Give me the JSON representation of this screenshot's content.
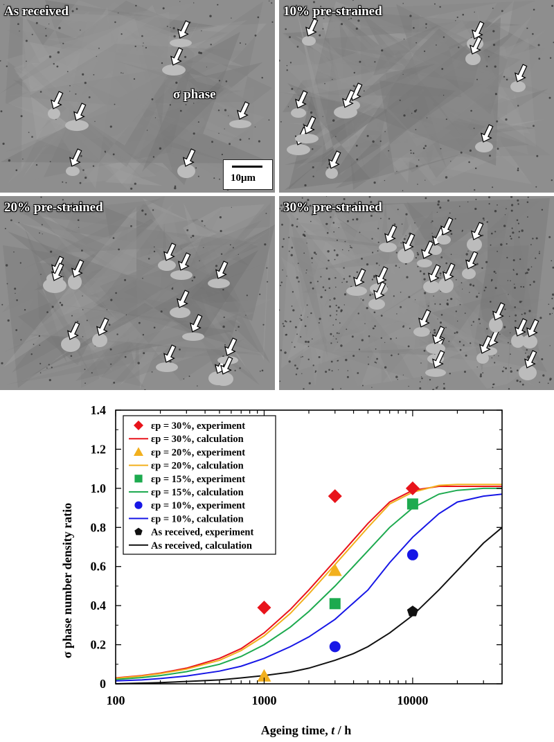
{
  "micrographs": {
    "panels": [
      {
        "label": "As received"
      },
      {
        "label": "10% pre-strained"
      },
      {
        "label": "20% pre-strained"
      },
      {
        "label": "30% pre-strained"
      }
    ],
    "phase_annotation": "σ phase",
    "scale_bar": "10μm",
    "colors": {
      "matrix": "#8e8e8e",
      "sigma_phase": "#bcbcbc",
      "arrow_fill": "#ffffff",
      "arrow_outline": "#000000"
    }
  },
  "chart_data": {
    "type": "scatter",
    "xlabel_main": "Ageing time, ",
    "xlabel_italic": "t",
    "xlabel_unit": " / h",
    "ylabel": "σ phase number density ratio",
    "xscale": "log",
    "xlim": [
      100,
      40000
    ],
    "ylim": [
      0,
      1.4
    ],
    "xticks": [
      100,
      1000,
      10000
    ],
    "xtick_labels": [
      "100",
      "1000",
      "10000"
    ],
    "yticks": [
      0,
      0.2,
      0.4,
      0.6,
      0.8,
      1.0,
      1.2,
      1.4
    ],
    "ytick_labels": [
      "0",
      "0.2",
      "0.4",
      "0.6",
      "0.8",
      "1.0",
      "1.2",
      "1.4"
    ],
    "legend_position": "top-left",
    "series": [
      {
        "name": "εp = 30%, experiment",
        "kind": "points",
        "marker": "diamond",
        "color": "#e8141b",
        "points": [
          [
            1000,
            0.39
          ],
          [
            3000,
            0.96
          ],
          [
            10000,
            1.0
          ]
        ]
      },
      {
        "name": "εp = 30%, calculation",
        "kind": "curve",
        "color": "#e8141b",
        "points": [
          [
            100,
            0.03
          ],
          [
            150,
            0.042
          ],
          [
            200,
            0.055
          ],
          [
            300,
            0.08
          ],
          [
            500,
            0.13
          ],
          [
            700,
            0.18
          ],
          [
            1000,
            0.26
          ],
          [
            1500,
            0.38
          ],
          [
            2000,
            0.48
          ],
          [
            3000,
            0.63
          ],
          [
            5000,
            0.82
          ],
          [
            7000,
            0.93
          ],
          [
            10000,
            0.99
          ],
          [
            15000,
            1.01
          ],
          [
            20000,
            1.01
          ],
          [
            30000,
            1.01
          ],
          [
            40000,
            1.01
          ]
        ]
      },
      {
        "name": "εp = 20%, experiment",
        "kind": "points",
        "marker": "triangle",
        "color": "#f2b01e",
        "points": [
          [
            1000,
            0.04
          ],
          [
            3000,
            0.58
          ]
        ]
      },
      {
        "name": "εp = 20%, calculation",
        "kind": "curve",
        "color": "#f2b01e",
        "points": [
          [
            100,
            0.028
          ],
          [
            150,
            0.04
          ],
          [
            200,
            0.052
          ],
          [
            300,
            0.075
          ],
          [
            500,
            0.12
          ],
          [
            700,
            0.17
          ],
          [
            1000,
            0.245
          ],
          [
            1500,
            0.36
          ],
          [
            2000,
            0.46
          ],
          [
            3000,
            0.61
          ],
          [
            5000,
            0.8
          ],
          [
            7000,
            0.92
          ],
          [
            10000,
            0.98
          ],
          [
            15000,
            1.015
          ],
          [
            20000,
            1.02
          ],
          [
            30000,
            1.02
          ],
          [
            40000,
            1.02
          ]
        ]
      },
      {
        "name": "εp = 15%, experiment",
        "kind": "points",
        "marker": "square",
        "color": "#1daa4f",
        "points": [
          [
            3000,
            0.41
          ],
          [
            10000,
            0.92
          ]
        ]
      },
      {
        "name": "εp = 15%, calculation",
        "kind": "curve",
        "color": "#1daa4f",
        "points": [
          [
            100,
            0.022
          ],
          [
            150,
            0.032
          ],
          [
            200,
            0.042
          ],
          [
            300,
            0.062
          ],
          [
            500,
            0.1
          ],
          [
            700,
            0.14
          ],
          [
            1000,
            0.2
          ],
          [
            1500,
            0.29
          ],
          [
            2000,
            0.37
          ],
          [
            3000,
            0.5
          ],
          [
            5000,
            0.68
          ],
          [
            7000,
            0.8
          ],
          [
            10000,
            0.9
          ],
          [
            15000,
            0.97
          ],
          [
            20000,
            0.99
          ],
          [
            30000,
            1.0
          ],
          [
            40000,
            1.0
          ]
        ]
      },
      {
        "name": "εp = 10%, experiment",
        "kind": "points",
        "marker": "circle",
        "color": "#1717e6",
        "points": [
          [
            3000,
            0.19
          ],
          [
            10000,
            0.66
          ]
        ]
      },
      {
        "name": "εp = 10%, calculation",
        "kind": "curve",
        "color": "#1717e6",
        "points": [
          [
            100,
            0.015
          ],
          [
            150,
            0.02
          ],
          [
            200,
            0.027
          ],
          [
            300,
            0.04
          ],
          [
            500,
            0.065
          ],
          [
            700,
            0.09
          ],
          [
            1000,
            0.13
          ],
          [
            1500,
            0.19
          ],
          [
            2000,
            0.24
          ],
          [
            3000,
            0.33
          ],
          [
            5000,
            0.48
          ],
          [
            7000,
            0.62
          ],
          [
            10000,
            0.75
          ],
          [
            15000,
            0.87
          ],
          [
            20000,
            0.93
          ],
          [
            30000,
            0.96
          ],
          [
            40000,
            0.97
          ]
        ]
      },
      {
        "name": "As received, experiment",
        "kind": "points",
        "marker": "pentagon",
        "color": "#111111",
        "points": [
          [
            10000,
            0.37
          ]
        ]
      },
      {
        "name": "As received, calculation",
        "kind": "curve",
        "color": "#111111",
        "points": [
          [
            100,
            0.0
          ],
          [
            200,
            0.006
          ],
          [
            300,
            0.012
          ],
          [
            500,
            0.02
          ],
          [
            700,
            0.03
          ],
          [
            1000,
            0.042
          ],
          [
            1500,
            0.06
          ],
          [
            2000,
            0.08
          ],
          [
            3000,
            0.12
          ],
          [
            4000,
            0.155
          ],
          [
            5000,
            0.19
          ],
          [
            7000,
            0.26
          ],
          [
            10000,
            0.35
          ],
          [
            15000,
            0.48
          ],
          [
            20000,
            0.58
          ],
          [
            30000,
            0.72
          ],
          [
            40000,
            0.8
          ]
        ]
      }
    ]
  }
}
